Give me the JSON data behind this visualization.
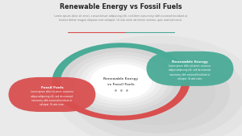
{
  "title": "Renewable Energy vs Fossil Fuels",
  "subtitle": "Lorem ipsum dolor sit amet, consectetuer adipiscing elit, sed diam nonummy nibh euismod tincidunt ut\nlaoreet dolore magna aliquam erat volutpat. Ut wisi enim ad minim veniam, quis nostrud exerci.",
  "center_text_line1": "Renewable Energy",
  "center_text_line2": "vs Fossil Fuels",
  "left_title": "Fossil Fuels",
  "left_body": "Lorem ipsum dolor sit amet, consectur\nadipur adipiscing elit, sed do eiusmod\nnonummy nibh euismod tincidunt ut\nvolutpat. Ut wisi enim.",
  "right_title": "Renewable Energy",
  "right_body": "Lorem ipsum dolor sit amet, consecur\nadipur adipiscing elit, sed do eiusmod\nnonummy nibh euismod tincidunt ut\nvolutpat. Ut wisi enim.",
  "bg_color": "#eaeaea",
  "red_color": "#d94f4f",
  "green_color": "#4aab97",
  "white_color": "#ffffff",
  "title_color": "#222222",
  "subtitle_color": "#888888",
  "center_text_color": "#666666"
}
